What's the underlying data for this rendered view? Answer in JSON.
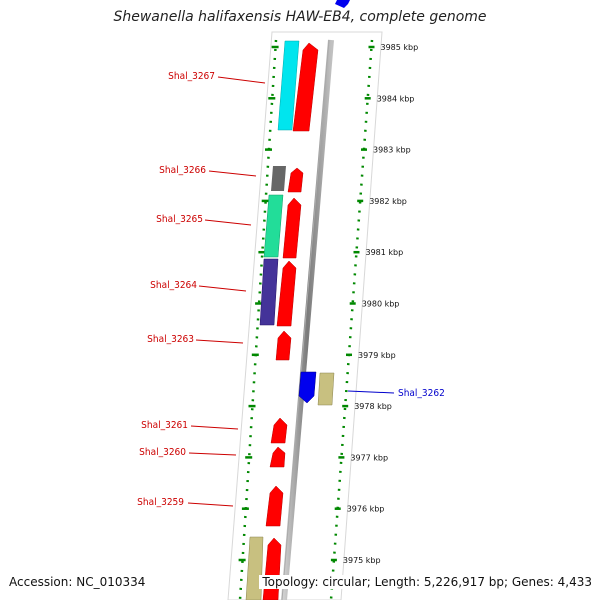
{
  "title": "Shewanella halifaxensis HAW-EB4, complete genome",
  "footer": {
    "accession": "Accession: NC_010334",
    "summary": "Topology: circular; Length: 5,226,917 bp; Genes: 4,433"
  },
  "kbp_ticks": [
    "3985 kbp",
    "3984 kbp",
    "3983 kbp",
    "3982 kbp",
    "3981 kbp",
    "3980 kbp",
    "3979 kbp",
    "3978 kbp",
    "3977 kbp",
    "3976 kbp",
    "3975 kbp"
  ],
  "gene_labels": [
    "Shal_3267",
    "Shal_3266",
    "Shal_3265",
    "Shal_3264",
    "Shal_3263",
    "Shal_3262",
    "Shal_3261",
    "Shal_3260",
    "Shal_3259"
  ],
  "colors": {
    "cds": "#ff0000",
    "cyan_feature": "#00e5ee",
    "gray_feature": "#666666",
    "green_feature": "#22dd99",
    "purple_feature": "#443399",
    "blue_feature": "#0000ee",
    "tan_feature": "#c8c080",
    "backbone": "#888888",
    "track": "#dddddd",
    "tick_green": "#008800",
    "label_red": "#cc0000",
    "label_blue": "#0000cc"
  }
}
